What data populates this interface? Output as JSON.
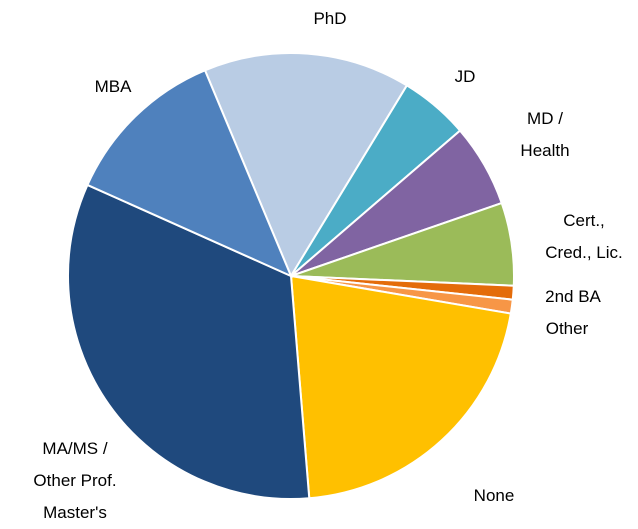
{
  "chart_data": {
    "type": "pie",
    "categories": [
      "PhD",
      "JD",
      "MD /\nHealth",
      "Cert.,\nCred., Lic.",
      "2nd BA",
      "Other",
      "None",
      "MA/MS /\nOther Prof.\nMaster's",
      "MBA"
    ],
    "values": [
      15,
      5,
      6,
      6,
      1,
      1,
      21,
      33,
      12
    ],
    "colors": [
      "#b9cce4",
      "#4bacc6",
      "#8064a2",
      "#9bbb59",
      "#e46c0a",
      "#f79646",
      "#ffc000",
      "#1f497d",
      "#4f81bd"
    ]
  }
}
